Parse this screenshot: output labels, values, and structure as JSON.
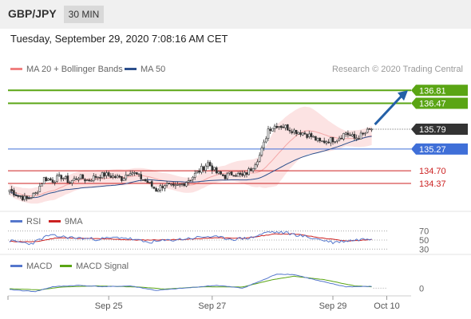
{
  "header": {
    "pair": "GBP/JPY",
    "timeframe": "30 MIN",
    "datetime": "Tuesday, September 29, 2020 7:08:16 AM CET"
  },
  "colors": {
    "bollinger": "#f4a6a6",
    "ma50": "#2c4f8c",
    "resistance": "#5aa514",
    "support": "#3f6fd8",
    "level_red": "#cc2222",
    "current": "#333333",
    "arrow": "#2460a7",
    "rsi": "#5577cc",
    "ma9": "#cc2222",
    "macd": "#5577cc",
    "macd_signal": "#5aa514"
  },
  "chart_data": [
    {
      "type": "candlestick",
      "legend": [
        {
          "label": "MA 20 + Bollinger Bands",
          "color": "#f08080"
        },
        {
          "label": "MA 50",
          "color": "#2c4f8c"
        }
      ],
      "watermark": "Research © 2020 Trading Central",
      "ylim": [
        133.7,
        137.15
      ],
      "levels": [
        {
          "label": "136.81",
          "value": 136.81,
          "kind": "resistance"
        },
        {
          "label": "136.47",
          "value": 136.47,
          "kind": "resistance"
        },
        {
          "label": "135.79",
          "value": 135.79,
          "kind": "current"
        },
        {
          "label": "135.27",
          "value": 135.27,
          "kind": "support"
        },
        {
          "label": "134.70",
          "value": 134.7,
          "kind": "level_red"
        },
        {
          "label": "134.37",
          "value": 134.37,
          "kind": "level_red"
        }
      ],
      "forecast_arrow": {
        "from": 135.79,
        "to": 136.81
      },
      "anchors": [
        [
          0,
          134.2
        ],
        [
          4,
          134.05
        ],
        [
          8,
          133.95
        ],
        [
          12,
          134.1
        ],
        [
          16,
          134.5
        ],
        [
          20,
          134.45
        ],
        [
          24,
          134.55
        ],
        [
          28,
          134.4
        ],
        [
          32,
          134.55
        ],
        [
          36,
          134.45
        ],
        [
          40,
          134.55
        ],
        [
          44,
          134.6
        ],
        [
          48,
          134.55
        ],
        [
          52,
          134.5
        ],
        [
          56,
          134.7
        ],
        [
          60,
          134.55
        ],
        [
          64,
          134.4
        ],
        [
          68,
          134.2
        ],
        [
          72,
          134.35
        ],
        [
          76,
          134.25
        ],
        [
          80,
          134.35
        ],
        [
          84,
          134.5
        ],
        [
          88,
          134.7
        ],
        [
          92,
          134.9
        ],
        [
          96,
          134.65
        ],
        [
          100,
          134.55
        ],
        [
          104,
          134.65
        ],
        [
          108,
          134.55
        ],
        [
          112,
          134.75
        ],
        [
          116,
          135.1
        ],
        [
          118,
          135.4
        ],
        [
          120,
          135.8
        ],
        [
          124,
          135.9
        ],
        [
          128,
          135.85
        ],
        [
          132,
          135.75
        ],
        [
          136,
          135.7
        ],
        [
          140,
          135.6
        ],
        [
          144,
          135.45
        ],
        [
          148,
          135.5
        ],
        [
          152,
          135.55
        ],
        [
          156,
          135.7
        ],
        [
          160,
          135.55
        ],
        [
          164,
          135.65
        ],
        [
          168,
          135.8
        ]
      ],
      "bollinger_width": [
        [
          0,
          0.15
        ],
        [
          20,
          0.25
        ],
        [
          60,
          0.2
        ],
        [
          100,
          0.2
        ],
        [
          116,
          0.4
        ],
        [
          124,
          0.8
        ],
        [
          140,
          0.6
        ],
        [
          156,
          0.2
        ],
        [
          168,
          0.25
        ]
      ]
    },
    {
      "type": "line",
      "legend": [
        {
          "label": "RSI",
          "color": "#5577cc"
        },
        {
          "label": "9MA",
          "color": "#cc2222"
        }
      ],
      "ylim": [
        20,
        80
      ],
      "ticks": [
        {
          "label": "70",
          "value": 70
        },
        {
          "label": "50",
          "value": 50
        },
        {
          "label": "30",
          "value": 30
        }
      ],
      "rsi_anchors": [
        [
          0,
          48
        ],
        [
          10,
          42
        ],
        [
          18,
          60
        ],
        [
          30,
          55
        ],
        [
          40,
          52
        ],
        [
          52,
          56
        ],
        [
          64,
          45
        ],
        [
          80,
          52
        ],
        [
          92,
          58
        ],
        [
          104,
          52
        ],
        [
          112,
          55
        ],
        [
          120,
          68
        ],
        [
          128,
          66
        ],
        [
          140,
          55
        ],
        [
          150,
          45
        ],
        [
          160,
          50
        ],
        [
          168,
          54
        ]
      ],
      "ma9_anchors": [
        [
          0,
          47
        ],
        [
          12,
          46
        ],
        [
          22,
          55
        ],
        [
          40,
          53
        ],
        [
          60,
          50
        ],
        [
          80,
          51
        ],
        [
          96,
          55
        ],
        [
          110,
          54
        ],
        [
          122,
          63
        ],
        [
          132,
          64
        ],
        [
          144,
          55
        ],
        [
          156,
          48
        ],
        [
          168,
          51
        ]
      ]
    },
    {
      "type": "line",
      "legend": [
        {
          "label": "MACD",
          "color": "#5577cc"
        },
        {
          "label": "MACD Signal",
          "color": "#5aa514"
        }
      ],
      "ticks": [
        {
          "label": "0",
          "value": 0
        }
      ],
      "ylim": [
        -0.3,
        0.6
      ],
      "macd_anchors": [
        [
          0,
          -0.05
        ],
        [
          12,
          -0.12
        ],
        [
          20,
          0.05
        ],
        [
          32,
          0.1
        ],
        [
          44,
          0.05
        ],
        [
          56,
          0.08
        ],
        [
          68,
          -0.08
        ],
        [
          84,
          0.02
        ],
        [
          96,
          0.1
        ],
        [
          108,
          0.0
        ],
        [
          118,
          0.3
        ],
        [
          124,
          0.5
        ],
        [
          132,
          0.48
        ],
        [
          144,
          0.25
        ],
        [
          156,
          0.05
        ],
        [
          168,
          0.06
        ]
      ],
      "signal_anchors": [
        [
          0,
          -0.02
        ],
        [
          14,
          -0.06
        ],
        [
          24,
          0.04
        ],
        [
          40,
          0.08
        ],
        [
          60,
          0.04
        ],
        [
          72,
          -0.03
        ],
        [
          90,
          0.05
        ],
        [
          108,
          0.04
        ],
        [
          122,
          0.3
        ],
        [
          132,
          0.42
        ],
        [
          146,
          0.3
        ],
        [
          160,
          0.08
        ],
        [
          168,
          0.05
        ]
      ]
    }
  ],
  "x_axis": {
    "ticks": [
      {
        "label": "Sep 25",
        "index": 46
      },
      {
        "label": "Sep 27",
        "index": 94
      },
      {
        "label": "Sep 29",
        "index": 150
      },
      {
        "label": "Oct 10",
        "index": 175
      }
    ]
  }
}
